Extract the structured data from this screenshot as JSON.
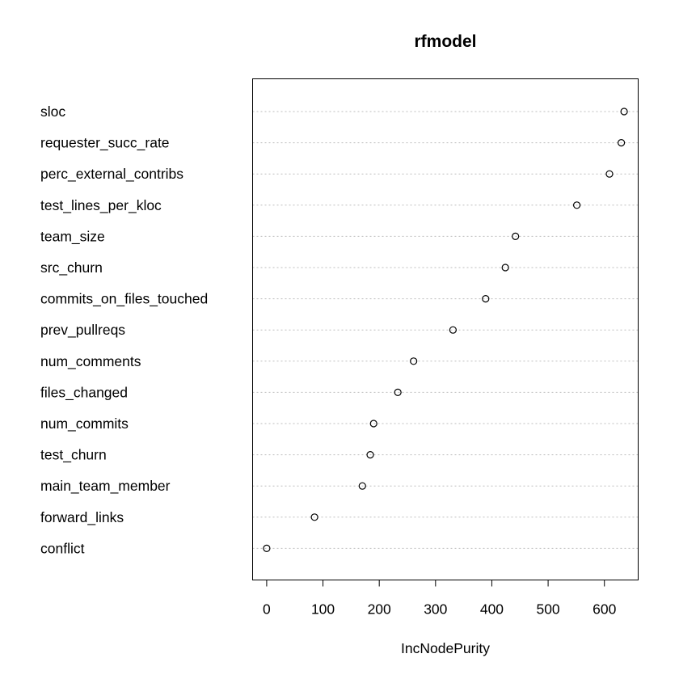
{
  "chart_data": {
    "type": "scatter",
    "title": "rfmodel",
    "xlabel": "IncNodePurity",
    "ylabel": "",
    "xlim": [
      -25,
      660
    ],
    "xticks": [
      0,
      100,
      200,
      300,
      400,
      500,
      600
    ],
    "grid": "horizontal dotted",
    "categories": [
      "sloc",
      "requester_succ_rate",
      "perc_external_contribs",
      "test_lines_per_kloc",
      "team_size",
      "src_churn",
      "commits_on_files_touched",
      "prev_pullreqs",
      "num_comments",
      "files_changed",
      "num_commits",
      "test_churn",
      "main_team_member",
      "forward_links",
      "conflict"
    ],
    "values": [
      635,
      630,
      609,
      551,
      442,
      424,
      389,
      331,
      261,
      233,
      190,
      184,
      170,
      85,
      0
    ]
  }
}
